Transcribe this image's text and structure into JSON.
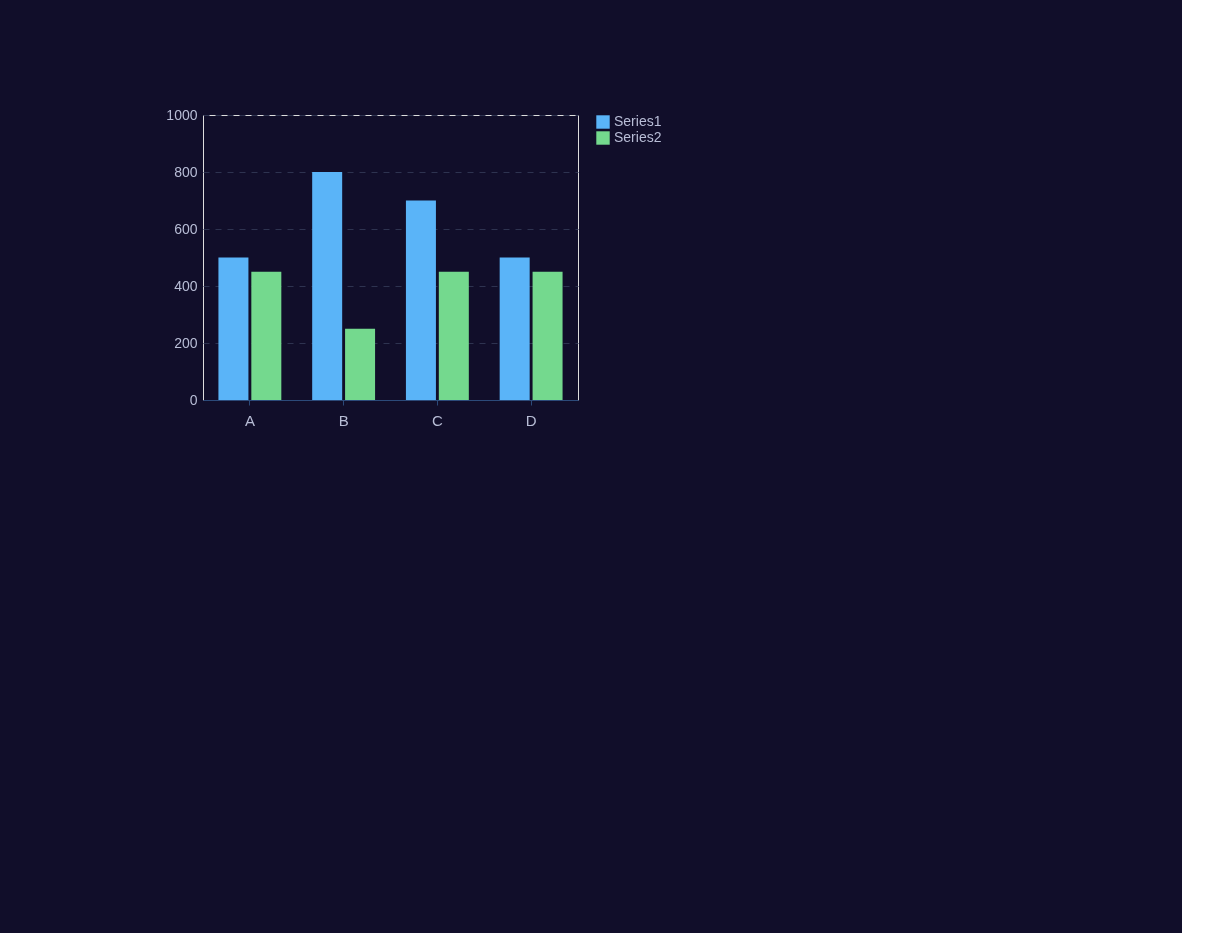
{
  "chart_data": {
    "type": "bar",
    "categories": [
      "A",
      "B",
      "C",
      "D"
    ],
    "series": [
      {
        "name": "Series1",
        "color": "#5ab4f8",
        "values": [
          500,
          800,
          700,
          500
        ]
      },
      {
        "name": "Series2",
        "color": "#74d98e",
        "values": [
          450,
          250,
          450,
          450
        ]
      }
    ],
    "ylim": [
      0,
      1000
    ],
    "yticks": [
      0,
      200,
      400,
      600,
      800,
      1000
    ],
    "grid": "y",
    "legend": "right"
  }
}
